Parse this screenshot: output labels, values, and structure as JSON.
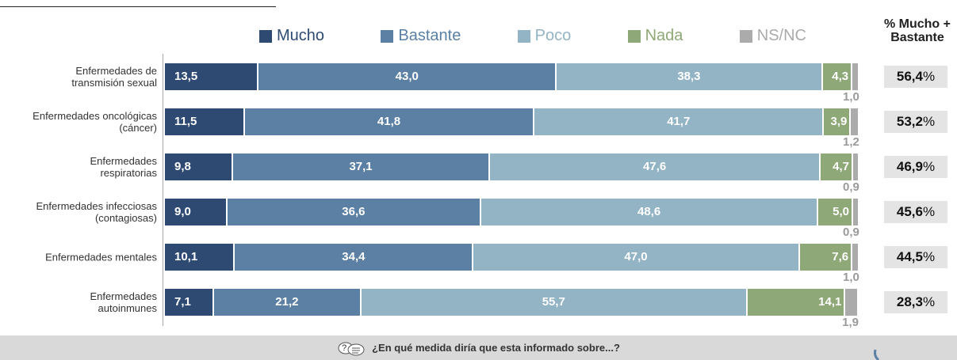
{
  "chart_data": {
    "type": "stacked-bar-horizontal",
    "categories": [
      "Enfermedades de\ntransmisión sexual",
      "Enfermedades oncológicas\n(cáncer)",
      "Enfermedades\nrespiratorias",
      "Enfermedades infecciosas\n(contagiosas)",
      "Enfermedades mentales",
      "Enfermedades\nautoinmunes"
    ],
    "xlim": [
      0,
      100
    ],
    "series": [
      {
        "name": "Mucho",
        "color": "#2e4a72",
        "values": [
          13.5,
          11.5,
          9.8,
          9.0,
          10.1,
          7.1
        ],
        "value_labels": [
          "13,5",
          "11,5",
          "9,8",
          "9,0",
          "10,1",
          "7,1"
        ]
      },
      {
        "name": "Bastante",
        "color": "#5b80a4",
        "values": [
          43.0,
          41.8,
          37.1,
          36.6,
          34.4,
          21.2
        ],
        "value_labels": [
          "43,0",
          "41,8",
          "37,1",
          "36,6",
          "34,4",
          "21,2"
        ]
      },
      {
        "name": "Poco",
        "color": "#93b4c5",
        "values": [
          38.3,
          41.7,
          47.6,
          48.6,
          47.0,
          55.7
        ],
        "value_labels": [
          "38,3",
          "41,7",
          "47,6",
          "48,6",
          "47,0",
          "55,7"
        ]
      },
      {
        "name": "Nada",
        "color": "#8fa877",
        "values": [
          4.3,
          3.9,
          4.7,
          5.0,
          7.6,
          14.1
        ],
        "value_labels": [
          "4,3",
          "3,9",
          "4,7",
          "5,0",
          "7,6",
          "14,1"
        ]
      },
      {
        "name": "NS/NC",
        "color": "#ababab",
        "values": [
          1.0,
          1.2,
          0.9,
          0.9,
          1.0,
          1.9
        ],
        "value_labels": [
          "1,0",
          "1,2",
          "0,9",
          "0,9",
          "1,0",
          "1,9"
        ]
      }
    ],
    "totals": {
      "title": "% Mucho +\nBastante",
      "values": [
        56.4,
        53.2,
        46.9,
        45.6,
        44.5,
        28.3
      ],
      "value_labels": [
        "56,4",
        "53,2",
        "46,9",
        "45,6",
        "44,5",
        "28,3"
      ],
      "unit": "%"
    }
  },
  "footer": {
    "icon": "?",
    "text": "¿En qué medida diría que esta informado sobre...?"
  }
}
